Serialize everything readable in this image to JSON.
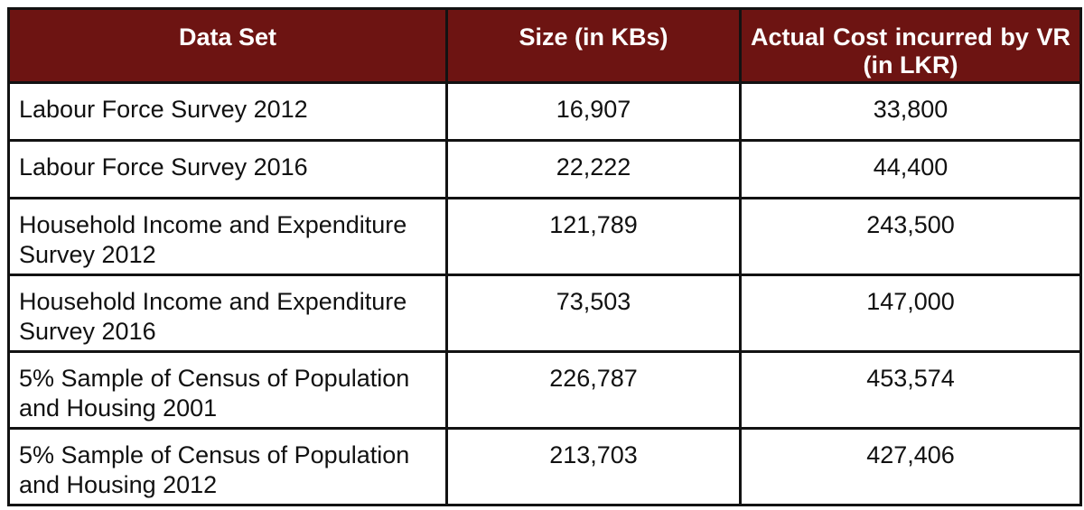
{
  "table": {
    "header": {
      "data_set": "Data Set",
      "size": "Size (in KBs)",
      "cost_line1": "Actual Cost incurred by VR",
      "cost_line2": "(in LKR)"
    },
    "rows": [
      {
        "dataset": "Labour Force Survey 2012",
        "size_kb": "16,907",
        "cost_lkr": "33,800"
      },
      {
        "dataset": "Labour Force Survey 2016",
        "size_kb": "22,222",
        "cost_lkr": "44,400"
      },
      {
        "dataset": "Household Income and Expenditure Survey 2012",
        "size_kb": "121,789",
        "cost_lkr": "243,500"
      },
      {
        "dataset": "Household Income and Expenditure Survey 2016",
        "size_kb": "73,503",
        "cost_lkr": "147,000"
      },
      {
        "dataset": "5% Sample of Census of Population and Housing 2001",
        "size_kb": "226,787",
        "cost_lkr": "453,574"
      },
      {
        "dataset": "5% Sample of Census of Population and Housing 2012",
        "size_kb": "213,703",
        "cost_lkr": "427,406"
      }
    ],
    "colors": {
      "header_bg": "#6D1412",
      "header_text": "#FFFFFF",
      "border": "#121212",
      "body_text": "#111111",
      "row_bg": "#FFFFFF"
    }
  }
}
